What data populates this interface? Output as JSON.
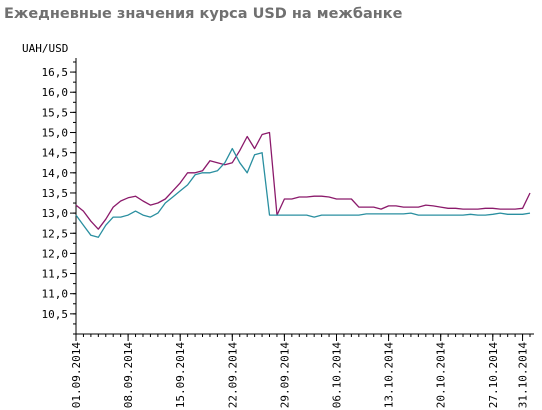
{
  "chart_data": {
    "type": "line",
    "title": "Ежедневные значения курса USD на межбанке",
    "ylabel": "UAH/USD",
    "xlabel": "",
    "ylim": [
      10.0,
      16.75
    ],
    "yticks": [
      "10,5",
      "11,0",
      "11,5",
      "12,0",
      "12,5",
      "13,0",
      "13,5",
      "14,0",
      "14,5",
      "15,0",
      "15,5",
      "16,0",
      "16,5"
    ],
    "xlim": [
      "01.09.2014",
      "01.11.2014"
    ],
    "xticks": [
      "01.09.2014",
      "08.09.2014",
      "15.09.2014",
      "22.09.2014",
      "29.09.2014",
      "06.10.2014",
      "13.10.2014",
      "20.10.2014",
      "27.10.2014",
      "31.10.2014"
    ],
    "grid": false,
    "legend": "none",
    "series": [
      {
        "color": "#8b1a6b",
        "points": [
          [
            "01.09.2014",
            13.2
          ],
          [
            "02.09.2014",
            13.05
          ],
          [
            "03.09.2014",
            12.8
          ],
          [
            "04.09.2014",
            12.6
          ],
          [
            "05.09.2014",
            12.85
          ],
          [
            "06.09.2014",
            13.15
          ],
          [
            "07.09.2014",
            13.3
          ],
          [
            "08.09.2014",
            13.38
          ],
          [
            "09.09.2014",
            13.42
          ],
          [
            "10.09.2014",
            13.3
          ],
          [
            "11.09.2014",
            13.2
          ],
          [
            "12.09.2014",
            13.25
          ],
          [
            "13.09.2014",
            13.35
          ],
          [
            "14.09.2014",
            13.55
          ],
          [
            "15.09.2014",
            13.75
          ],
          [
            "16.09.2014",
            14.0
          ],
          [
            "17.09.2014",
            14.0
          ],
          [
            "18.09.2014",
            14.05
          ],
          [
            "19.09.2014",
            14.3
          ],
          [
            "20.09.2014",
            14.25
          ],
          [
            "21.09.2014",
            14.2
          ],
          [
            "22.09.2014",
            14.25
          ],
          [
            "23.09.2014",
            14.55
          ],
          [
            "24.09.2014",
            14.9
          ],
          [
            "25.09.2014",
            14.6
          ],
          [
            "26.09.2014",
            14.95
          ],
          [
            "27.09.2014",
            15.0
          ],
          [
            "28.09.2014",
            12.95
          ],
          [
            "29.09.2014",
            13.35
          ],
          [
            "30.09.2014",
            13.35
          ],
          [
            "01.10.2014",
            13.4
          ],
          [
            "02.10.2014",
            13.4
          ],
          [
            "03.10.2014",
            13.42
          ],
          [
            "04.10.2014",
            13.42
          ],
          [
            "05.10.2014",
            13.4
          ],
          [
            "06.10.2014",
            13.35
          ],
          [
            "07.10.2014",
            13.35
          ],
          [
            "08.10.2014",
            13.35
          ],
          [
            "09.10.2014",
            13.15
          ],
          [
            "10.10.2014",
            13.15
          ],
          [
            "11.10.2014",
            13.15
          ],
          [
            "12.10.2014",
            13.1
          ],
          [
            "13.10.2014",
            13.18
          ],
          [
            "14.10.2014",
            13.18
          ],
          [
            "15.10.2014",
            13.15
          ],
          [
            "16.10.2014",
            13.15
          ],
          [
            "17.10.2014",
            13.15
          ],
          [
            "18.10.2014",
            13.2
          ],
          [
            "19.10.2014",
            13.18
          ],
          [
            "20.10.2014",
            13.15
          ],
          [
            "21.10.2014",
            13.12
          ],
          [
            "22.10.2014",
            13.12
          ],
          [
            "23.10.2014",
            13.1
          ],
          [
            "24.10.2014",
            13.1
          ],
          [
            "25.10.2014",
            13.1
          ],
          [
            "26.10.2014",
            13.12
          ],
          [
            "27.10.2014",
            13.12
          ],
          [
            "28.10.2014",
            13.1
          ],
          [
            "29.10.2014",
            13.1
          ],
          [
            "30.10.2014",
            13.1
          ],
          [
            "31.10.2014",
            13.12
          ],
          [
            "01.11.2014",
            13.5
          ]
        ]
      },
      {
        "color": "#2a8fa0",
        "points": [
          [
            "01.09.2014",
            12.95
          ],
          [
            "02.09.2014",
            12.7
          ],
          [
            "03.09.2014",
            12.45
          ],
          [
            "04.09.2014",
            12.4
          ],
          [
            "05.09.2014",
            12.7
          ],
          [
            "06.09.2014",
            12.9
          ],
          [
            "07.09.2014",
            12.9
          ],
          [
            "08.09.2014",
            12.95
          ],
          [
            "09.09.2014",
            13.05
          ],
          [
            "10.09.2014",
            12.95
          ],
          [
            "11.09.2014",
            12.9
          ],
          [
            "12.09.2014",
            13.0
          ],
          [
            "13.09.2014",
            13.25
          ],
          [
            "14.09.2014",
            13.4
          ],
          [
            "15.09.2014",
            13.55
          ],
          [
            "16.09.2014",
            13.7
          ],
          [
            "17.09.2014",
            13.95
          ],
          [
            "18.09.2014",
            14.0
          ],
          [
            "19.09.2014",
            14.0
          ],
          [
            "20.09.2014",
            14.05
          ],
          [
            "21.09.2014",
            14.25
          ],
          [
            "22.09.2014",
            14.6
          ],
          [
            "23.09.2014",
            14.25
          ],
          [
            "24.09.2014",
            14.0
          ],
          [
            "25.09.2014",
            14.45
          ],
          [
            "26.09.2014",
            14.5
          ],
          [
            "27.09.2014",
            12.95
          ],
          [
            "28.09.2014",
            12.95
          ],
          [
            "29.09.2014",
            12.95
          ],
          [
            "30.09.2014",
            12.95
          ],
          [
            "01.10.2014",
            12.95
          ],
          [
            "02.10.2014",
            12.95
          ],
          [
            "03.10.2014",
            12.9
          ],
          [
            "04.10.2014",
            12.95
          ],
          [
            "05.10.2014",
            12.95
          ],
          [
            "06.10.2014",
            12.95
          ],
          [
            "07.10.2014",
            12.95
          ],
          [
            "08.10.2014",
            12.95
          ],
          [
            "09.10.2014",
            12.95
          ],
          [
            "10.10.2014",
            12.98
          ],
          [
            "11.10.2014",
            12.98
          ],
          [
            "12.10.2014",
            12.98
          ],
          [
            "13.10.2014",
            12.98
          ],
          [
            "14.10.2014",
            12.98
          ],
          [
            "15.10.2014",
            12.98
          ],
          [
            "16.10.2014",
            13.0
          ],
          [
            "17.10.2014",
            12.95
          ],
          [
            "18.10.2014",
            12.95
          ],
          [
            "19.10.2014",
            12.95
          ],
          [
            "20.10.2014",
            12.95
          ],
          [
            "21.10.2014",
            12.95
          ],
          [
            "22.10.2014",
            12.95
          ],
          [
            "23.10.2014",
            12.95
          ],
          [
            "24.10.2014",
            12.97
          ],
          [
            "25.10.2014",
            12.95
          ],
          [
            "26.10.2014",
            12.95
          ],
          [
            "27.10.2014",
            12.97
          ],
          [
            "28.10.2014",
            13.0
          ],
          [
            "29.10.2014",
            12.97
          ],
          [
            "30.10.2014",
            12.97
          ],
          [
            "31.10.2014",
            12.97
          ],
          [
            "01.11.2014",
            13.0
          ]
        ]
      }
    ]
  }
}
